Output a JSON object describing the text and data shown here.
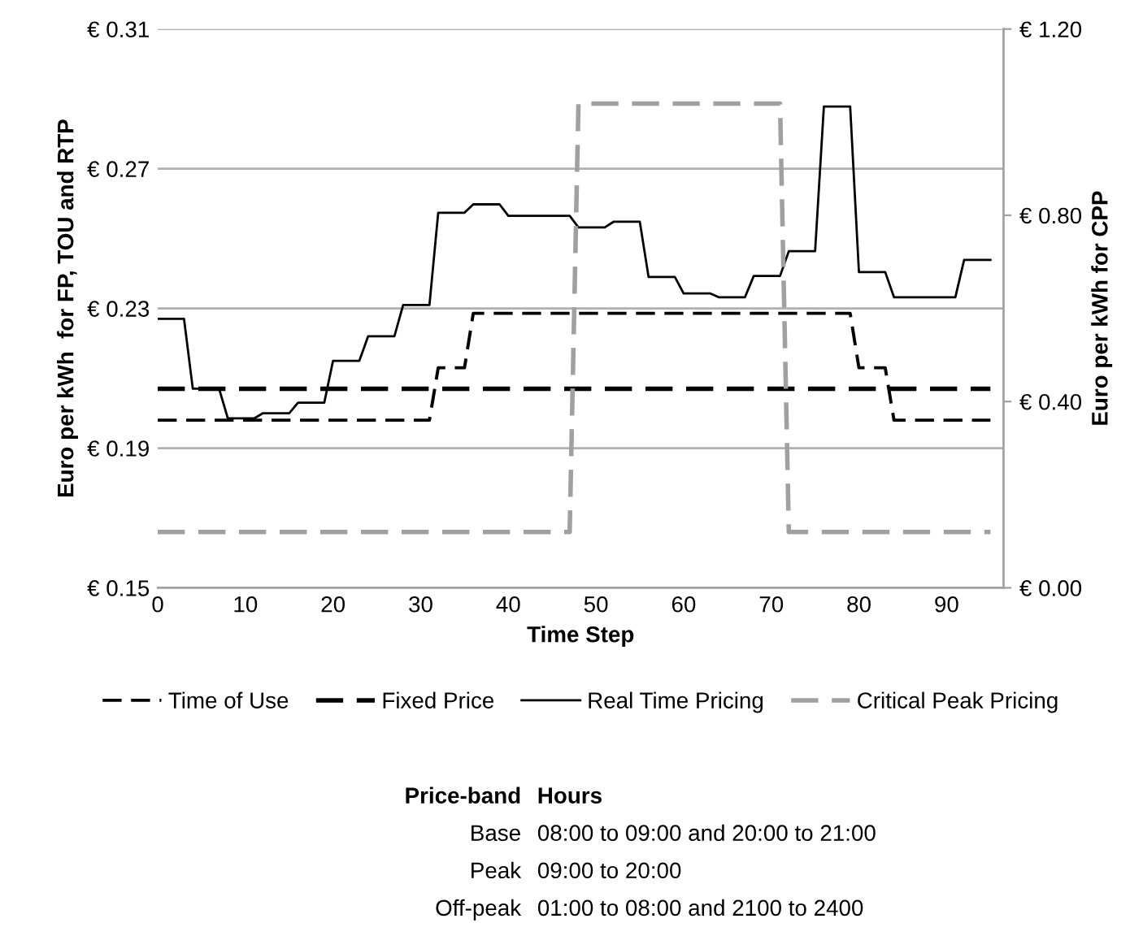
{
  "chart_data": {
    "type": "line",
    "xlabel": "Time Step",
    "ylabel": "Euro per kWh  for FP, TOU and RTP",
    "y2label": "Euro per kWh for CPP",
    "xlim": [
      0,
      96.5
    ],
    "xticks": [
      0,
      10,
      20,
      30,
      40,
      50,
      60,
      70,
      80,
      90
    ],
    "ylim": [
      0.15,
      0.31
    ],
    "yticks": [
      {
        "value": 0.15,
        "label": "€ 0.15"
      },
      {
        "value": 0.19,
        "label": "€ 0.19"
      },
      {
        "value": 0.23,
        "label": "€ 0.23"
      },
      {
        "value": 0.27,
        "label": "€ 0.27"
      },
      {
        "value": 0.31,
        "label": "€ 0.31"
      }
    ],
    "y2lim": [
      0,
      1.2
    ],
    "y2ticks": [
      {
        "value": 0,
        "label": "€ 0.00"
      },
      {
        "value": 0.4,
        "label": "€ 0.40"
      },
      {
        "value": 0.8,
        "label": "€ 0.80"
      },
      {
        "value": 1.2,
        "label": "€ 1.20"
      }
    ],
    "grid": "y",
    "legend": "bottom",
    "series": [
      {
        "name": "Time of Use",
        "color": "#000000",
        "line_style": "dashed",
        "x": [
          0,
          31,
          32,
          35,
          36,
          79,
          80,
          83,
          84,
          95
        ],
        "values": [
          0.198,
          0.198,
          0.213,
          0.213,
          0.2286,
          0.2286,
          0.213,
          0.213,
          0.198,
          0.198
        ]
      },
      {
        "name": "Fixed Price",
        "color": "#000000",
        "line_style": "dashed",
        "x": [
          0,
          95
        ],
        "values": [
          0.207,
          0.207
        ]
      },
      {
        "name": "Real Time Pricing",
        "color": "#000000",
        "line_style": "solid",
        "x": [
          0,
          3,
          4,
          7,
          8,
          11,
          12,
          15,
          16,
          19,
          20,
          23,
          24,
          27,
          28,
          31,
          32,
          35,
          36,
          39,
          40,
          47,
          48,
          51,
          52,
          55,
          56,
          59,
          60,
          63,
          64,
          67,
          68,
          71,
          72,
          75,
          76,
          79,
          80,
          83,
          84,
          91,
          92,
          95
        ],
        "values": [
          0.227,
          0.227,
          0.207,
          0.207,
          0.1985,
          0.1985,
          0.2,
          0.2,
          0.203,
          0.203,
          0.215,
          0.215,
          0.222,
          0.222,
          0.231,
          0.231,
          0.2574,
          0.2574,
          0.2598,
          0.2598,
          0.2565,
          0.2565,
          0.2532,
          0.2532,
          0.2548,
          0.2548,
          0.239,
          0.239,
          0.2343,
          0.2343,
          0.2332,
          0.2332,
          0.2393,
          0.2393,
          0.2464,
          0.2464,
          0.2878,
          0.2878,
          0.2404,
          0.2404,
          0.2332,
          0.2332,
          0.2439,
          0.2439
        ]
      },
      {
        "name": "Critical Peak Pricing",
        "color": "#a0a0a0",
        "line_style": "dashed",
        "axis": "y2",
        "x": [
          0,
          47,
          48,
          71,
          72,
          95
        ],
        "values": [
          0.12,
          0.12,
          1.04,
          1.04,
          0.12,
          0.12
        ]
      }
    ],
    "annotations": [
      "Price-band",
      "Hours",
      "Base",
      "08:00 to 09:00 and 20:00 to 21:00",
      "Peak",
      "09:00 to 20:00",
      "Off-peak",
      "01:00 to 08:00 and 2100 to 2400"
    ]
  }
}
